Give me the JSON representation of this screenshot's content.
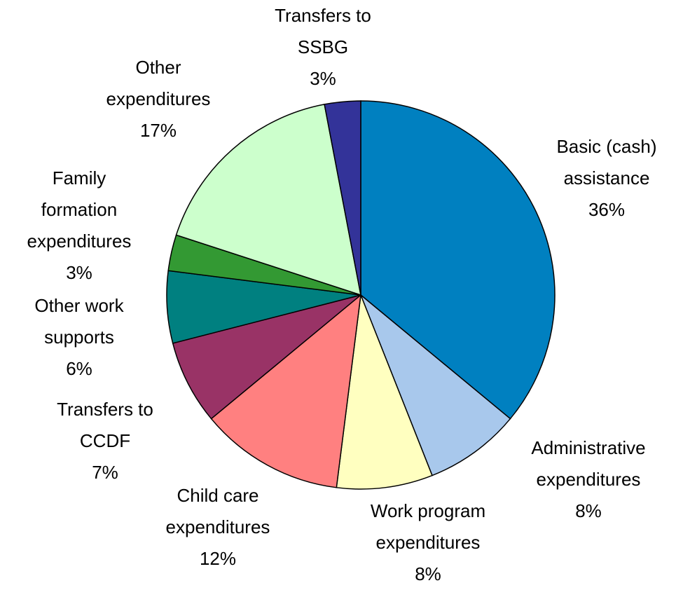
{
  "chart_data": {
    "type": "pie",
    "categories": [
      "Basic (cash) assistance",
      "Administrative expenditures",
      "Work program expenditures",
      "Child care expenditures",
      "Transfers to CCDF",
      "Other work supports",
      "Family formation expenditures",
      "Other expenditures",
      "Transfers to SSBG"
    ],
    "values": [
      36,
      8,
      8,
      12,
      7,
      6,
      3,
      17,
      3
    ],
    "value_labels": [
      "36%",
      "8%",
      "8%",
      "12%",
      "7%",
      "6%",
      "3%",
      "17%",
      "3%"
    ],
    "colors": [
      "#0080c0",
      "#a8c8ec",
      "#ffffc0",
      "#ff8080",
      "#993366",
      "#008080",
      "#339933",
      "#ccffcc",
      "#333399"
    ]
  }
}
